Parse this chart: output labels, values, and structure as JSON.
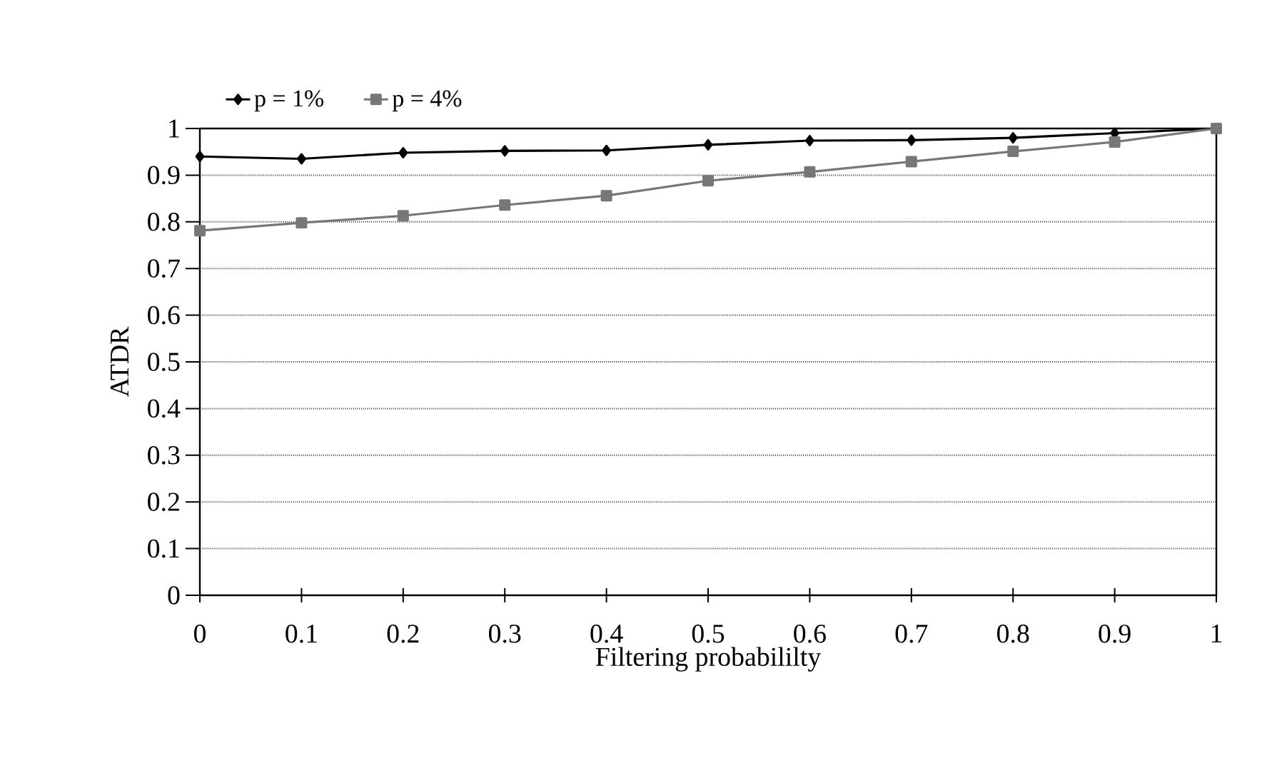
{
  "chart_data": {
    "type": "line",
    "xlabel": "Filtering probabililty",
    "ylabel": "ATDR",
    "x": [
      0,
      0.1,
      0.2,
      0.3,
      0.4,
      0.5,
      0.6,
      0.7,
      0.8,
      0.9,
      1
    ],
    "series": [
      {
        "name": "p = 1%",
        "color": "#000000",
        "marker": "diamond",
        "values": [
          0.94,
          0.935,
          0.948,
          0.952,
          0.953,
          0.965,
          0.974,
          0.975,
          0.98,
          0.99,
          1.0
        ]
      },
      {
        "name": "p = 4%",
        "color": "#777777",
        "marker": "square",
        "values": [
          0.781,
          0.798,
          0.813,
          0.836,
          0.856,
          0.888,
          0.907,
          0.929,
          0.951,
          0.971,
          1.0
        ]
      }
    ],
    "xlim": [
      0,
      1
    ],
    "ylim": [
      0,
      1
    ],
    "xticks": [
      0,
      0.1,
      0.2,
      0.3,
      0.4,
      0.5,
      0.6,
      0.7,
      0.8,
      0.9,
      1
    ],
    "yticks": [
      0,
      0.1,
      0.2,
      0.3,
      0.4,
      0.5,
      0.6,
      0.7,
      0.8,
      0.9,
      1
    ],
    "grid": "y",
    "legend": "top left",
    "line_style": "solid"
  }
}
